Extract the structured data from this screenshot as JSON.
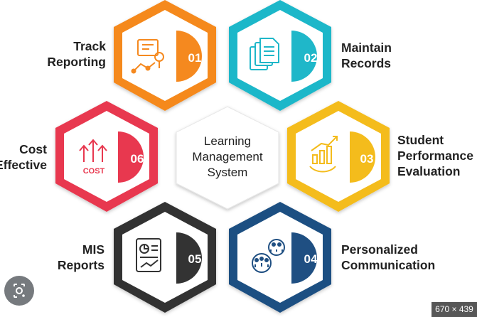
{
  "center": {
    "line1": "Learning",
    "line2": "Management",
    "line3": "System"
  },
  "items": [
    {
      "number": "01",
      "label1": "Track",
      "label2": "Reporting",
      "icon": "tracking-chart-icon",
      "color": "#f5891f"
    },
    {
      "number": "02",
      "label1": "Maintain",
      "label2": "Records",
      "icon": "documents-stack-icon",
      "color": "#1fb7c9"
    },
    {
      "number": "03",
      "label1": "Student",
      "label2": "Performance",
      "label3": "Evaluation",
      "icon": "growth-bar-chart-icon",
      "color": "#f4bc1c"
    },
    {
      "number": "04",
      "label1": "Personalized",
      "label2": "Communication",
      "icon": "group-communication-icon",
      "color": "#1f4f82"
    },
    {
      "number": "05",
      "label1": "MIS",
      "label2": "Reports",
      "icon": "report-document-icon",
      "color": "#333333"
    },
    {
      "number": "06",
      "label1": "Cost",
      "label2": "Effective",
      "icon_text": "COST",
      "icon": "cost-arrows-icon",
      "color": "#e8384f"
    }
  ],
  "badge": {
    "size_text": "670 × 439"
  },
  "lens": {
    "icon": "lens-search-icon"
  }
}
